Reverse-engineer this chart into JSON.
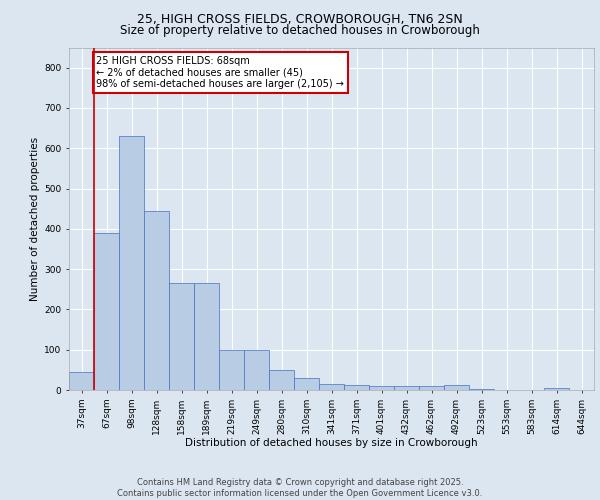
{
  "title": "25, HIGH CROSS FIELDS, CROWBOROUGH, TN6 2SN",
  "subtitle": "Size of property relative to detached houses in Crowborough",
  "xlabel": "Distribution of detached houses by size in Crowborough",
  "ylabel": "Number of detached properties",
  "categories": [
    "37sqm",
    "67sqm",
    "98sqm",
    "128sqm",
    "158sqm",
    "189sqm",
    "219sqm",
    "249sqm",
    "280sqm",
    "310sqm",
    "341sqm",
    "371sqm",
    "401sqm",
    "432sqm",
    "462sqm",
    "492sqm",
    "523sqm",
    "553sqm",
    "583sqm",
    "614sqm",
    "644sqm"
  ],
  "values": [
    45,
    390,
    630,
    445,
    265,
    265,
    100,
    100,
    50,
    30,
    15,
    12,
    10,
    10,
    10,
    12,
    3,
    0,
    0,
    5,
    0
  ],
  "bar_color": "#b8cce4",
  "bar_edge_color": "#4472c4",
  "bg_color": "#dce6f1",
  "grid_color": "#ffffff",
  "annotation_text": "25 HIGH CROSS FIELDS: 68sqm\n← 2% of detached houses are smaller (45)\n98% of semi-detached houses are larger (2,105) →",
  "annotation_box_facecolor": "#ffffff",
  "annotation_box_edgecolor": "#cc0000",
  "red_vline_x": 0.5,
  "ylim": [
    0,
    850
  ],
  "yticks": [
    0,
    100,
    200,
    300,
    400,
    500,
    600,
    700,
    800
  ],
  "footer_text": "Contains HM Land Registry data © Crown copyright and database right 2025.\nContains public sector information licensed under the Open Government Licence v3.0.",
  "title_fontsize": 9,
  "subtitle_fontsize": 8.5,
  "xlabel_fontsize": 7.5,
  "ylabel_fontsize": 7.5,
  "tick_fontsize": 6.5,
  "annotation_fontsize": 7,
  "footer_fontsize": 6
}
